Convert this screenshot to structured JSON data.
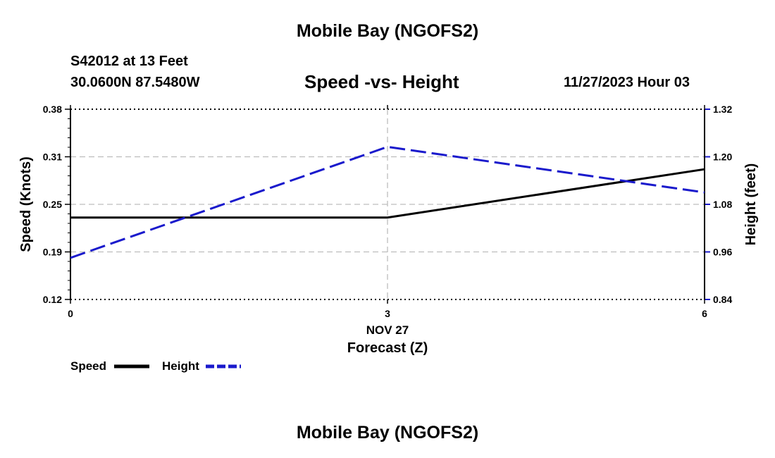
{
  "header": {
    "title": "Mobile Bay (NGOFS2)",
    "station": "S42012 at 13 Feet",
    "coordinates": "30.0600N  87.5480W",
    "chart_title": "Speed -vs- Height",
    "datetime": "11/27/2023 Hour 03"
  },
  "footer": {
    "title": "Mobile Bay (NGOFS2)"
  },
  "chart_data": {
    "type": "line",
    "title": "Speed -vs- Height",
    "xlabel": "Forecast (Z)",
    "xsublabel": "NOV 27",
    "ylabel": "Speed (Knots)",
    "y2label": "Height (feet)",
    "x": [
      0,
      3,
      6
    ],
    "xlim": [
      0,
      6
    ],
    "xticks": [
      "0",
      "3",
      "6"
    ],
    "ylim": [
      0.12,
      0.38
    ],
    "yticks": [
      "0.38",
      "0.31",
      "0.25",
      "0.19",
      "0.12"
    ],
    "y2lim": [
      0.84,
      1.32
    ],
    "y2ticks": [
      "1.32",
      "1.20",
      "1.08",
      "0.96",
      "0.84"
    ],
    "grid": true,
    "legend_position": "bottom-left",
    "series": [
      {
        "name": "Speed",
        "axis": "left",
        "color": "#000000",
        "style": "solid",
        "values": [
          0.232,
          0.232,
          0.298
        ]
      },
      {
        "name": "Height",
        "axis": "right",
        "color": "#1a1acc",
        "style": "dashed",
        "values": [
          0.945,
          1.225,
          1.11
        ]
      }
    ]
  }
}
